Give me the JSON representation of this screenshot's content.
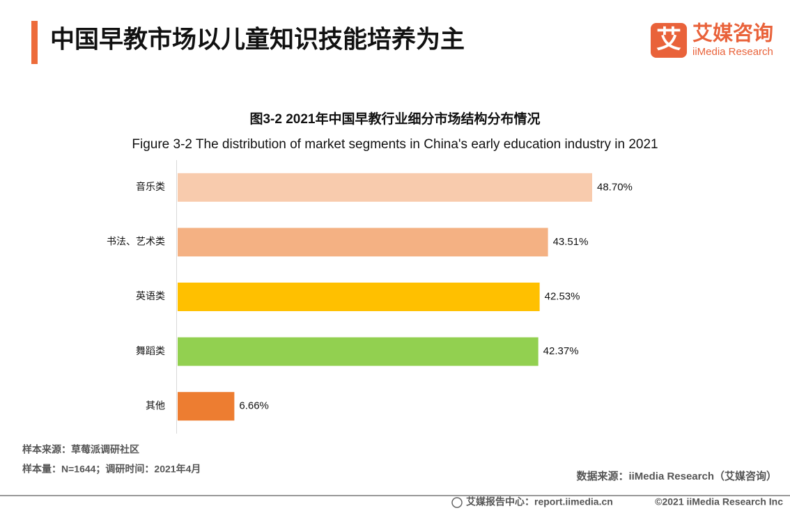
{
  "header": {
    "title": "中国早教市场以儿童知识技能培养为主"
  },
  "logo": {
    "mark": "艾",
    "name": "艾媒咨询",
    "english": "iiMedia Research"
  },
  "chart_data": {
    "type": "hbar",
    "title": "图3-2 2021年中国早教行业细分市场结构分布情况",
    "subtitle": "Figure 3-2 The distribution of market segments in China's early education industry in 2021",
    "categories": [
      "音乐类",
      "书法、艺术类",
      "英语类",
      "舞蹈类",
      "其他"
    ],
    "values": [
      48.7,
      43.51,
      42.53,
      42.37,
      6.66
    ],
    "value_labels": [
      "48.70%",
      "43.51%",
      "42.53%",
      "42.37%",
      "6.66%"
    ],
    "colors": [
      "#f8cbad",
      "#f4b183",
      "#ffc000",
      "#92d050",
      "#ed7d31"
    ]
  },
  "notes": {
    "sample_source": "样本来源：草莓派调研社区",
    "sample_size": "样本量：N=1644；调研时间：2021年4月",
    "data_source": "数据来源：iiMedia Research（艾媒咨询）"
  },
  "footer": {
    "site": "艾媒报告中心：report.iimedia.cn",
    "copyright": "©2021  iiMedia Research  Inc"
  }
}
